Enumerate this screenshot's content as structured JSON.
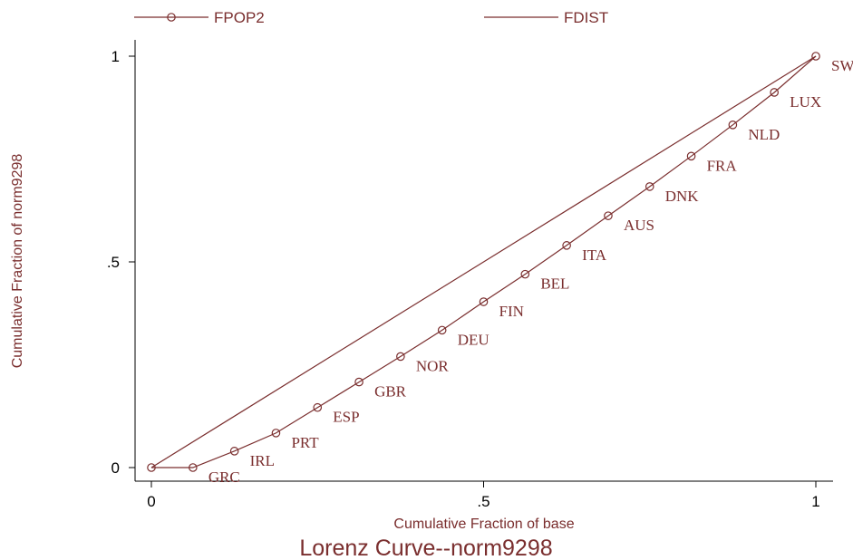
{
  "chart_data": {
    "type": "line",
    "title": "Lorenz Curve--norm9298",
    "xlabel": "Cumulative Fraction of base",
    "ylabel": "Cumulative Fraction of norm9298",
    "xlim": [
      0,
      1
    ],
    "ylim": [
      0,
      1
    ],
    "x_ticks": [
      0,
      0.5,
      1
    ],
    "x_tick_labels": [
      "0",
      ".5",
      "1"
    ],
    "y_ticks": [
      0,
      0.5,
      1
    ],
    "y_tick_labels": [
      "0",
      ".5",
      "1"
    ],
    "grid": false,
    "legend_position": "top",
    "color": "#7a2e2e",
    "series": [
      {
        "name": "FPOP2",
        "marker": "circle",
        "points": [
          {
            "x": 0.0,
            "y": 0.0,
            "label": ""
          },
          {
            "x": 0.0625,
            "y": 0.0,
            "label": "GRC"
          },
          {
            "x": 0.125,
            "y": 0.04,
            "label": "IRL"
          },
          {
            "x": 0.1875,
            "y": 0.084,
            "label": "PRT"
          },
          {
            "x": 0.25,
            "y": 0.146,
            "label": "ESP"
          },
          {
            "x": 0.3125,
            "y": 0.208,
            "label": "GBR"
          },
          {
            "x": 0.375,
            "y": 0.27,
            "label": "NOR"
          },
          {
            "x": 0.4375,
            "y": 0.334,
            "label": "DEU"
          },
          {
            "x": 0.5,
            "y": 0.403,
            "label": "FIN"
          },
          {
            "x": 0.5625,
            "y": 0.47,
            "label": "BEL"
          },
          {
            "x": 0.625,
            "y": 0.54,
            "label": "ITA"
          },
          {
            "x": 0.6875,
            "y": 0.612,
            "label": "AUS"
          },
          {
            "x": 0.75,
            "y": 0.683,
            "label": "DNK"
          },
          {
            "x": 0.8125,
            "y": 0.757,
            "label": "FRA"
          },
          {
            "x": 0.875,
            "y": 0.833,
            "label": "NLD"
          },
          {
            "x": 0.9375,
            "y": 0.912,
            "label": "LUX"
          },
          {
            "x": 1.0,
            "y": 1.0,
            "label": "SWE"
          }
        ]
      },
      {
        "name": "FDIST",
        "marker": "none",
        "points": [
          {
            "x": 0.0,
            "y": 0.0
          },
          {
            "x": 1.0,
            "y": 1.0
          }
        ]
      }
    ]
  }
}
